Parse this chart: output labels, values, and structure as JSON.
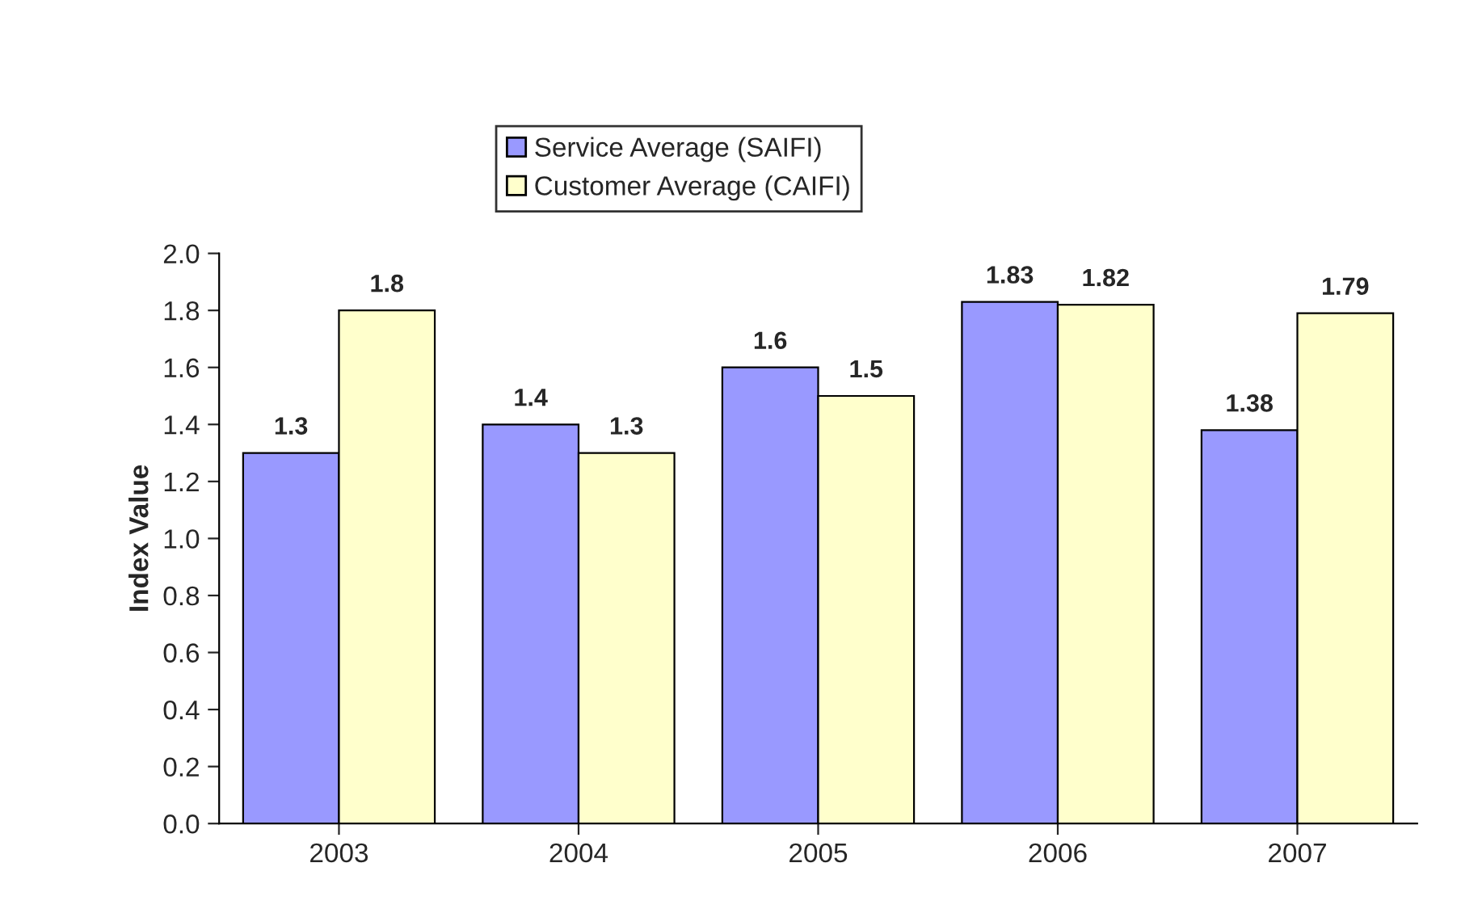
{
  "chart_data": {
    "type": "bar",
    "ylabel": "Index Value",
    "categories": [
      "2003",
      "2004",
      "2005",
      "2006",
      "2007"
    ],
    "series": [
      {
        "name": "Service Average (SAIFI)",
        "color": "#9999ff",
        "values": [
          1.3,
          1.4,
          1.6,
          1.83,
          1.38
        ]
      },
      {
        "name": "Customer Average (CAIFI)",
        "color": "#ffffcc",
        "values": [
          1.8,
          1.3,
          1.5,
          1.82,
          1.79
        ]
      }
    ],
    "ylim": [
      0,
      2.0
    ],
    "yticks": [
      {
        "value": 0,
        "label": "0.0"
      },
      {
        "value": 0.2,
        "label": "0.2"
      },
      {
        "value": 0.4,
        "label": "0.4"
      },
      {
        "value": 0.6,
        "label": "0.6"
      },
      {
        "value": 0.8,
        "label": "0.8"
      },
      {
        "value": 1.0,
        "label": "1.0"
      },
      {
        "value": 1.2,
        "label": "1.2"
      },
      {
        "value": 1.4,
        "label": "1.4"
      },
      {
        "value": 1.6,
        "label": "1.6"
      },
      {
        "value": 1.8,
        "label": "1.8"
      },
      {
        "value": 2.0,
        "label": "2.0"
      }
    ],
    "data_labels": true,
    "legend": "top",
    "grid": false
  }
}
